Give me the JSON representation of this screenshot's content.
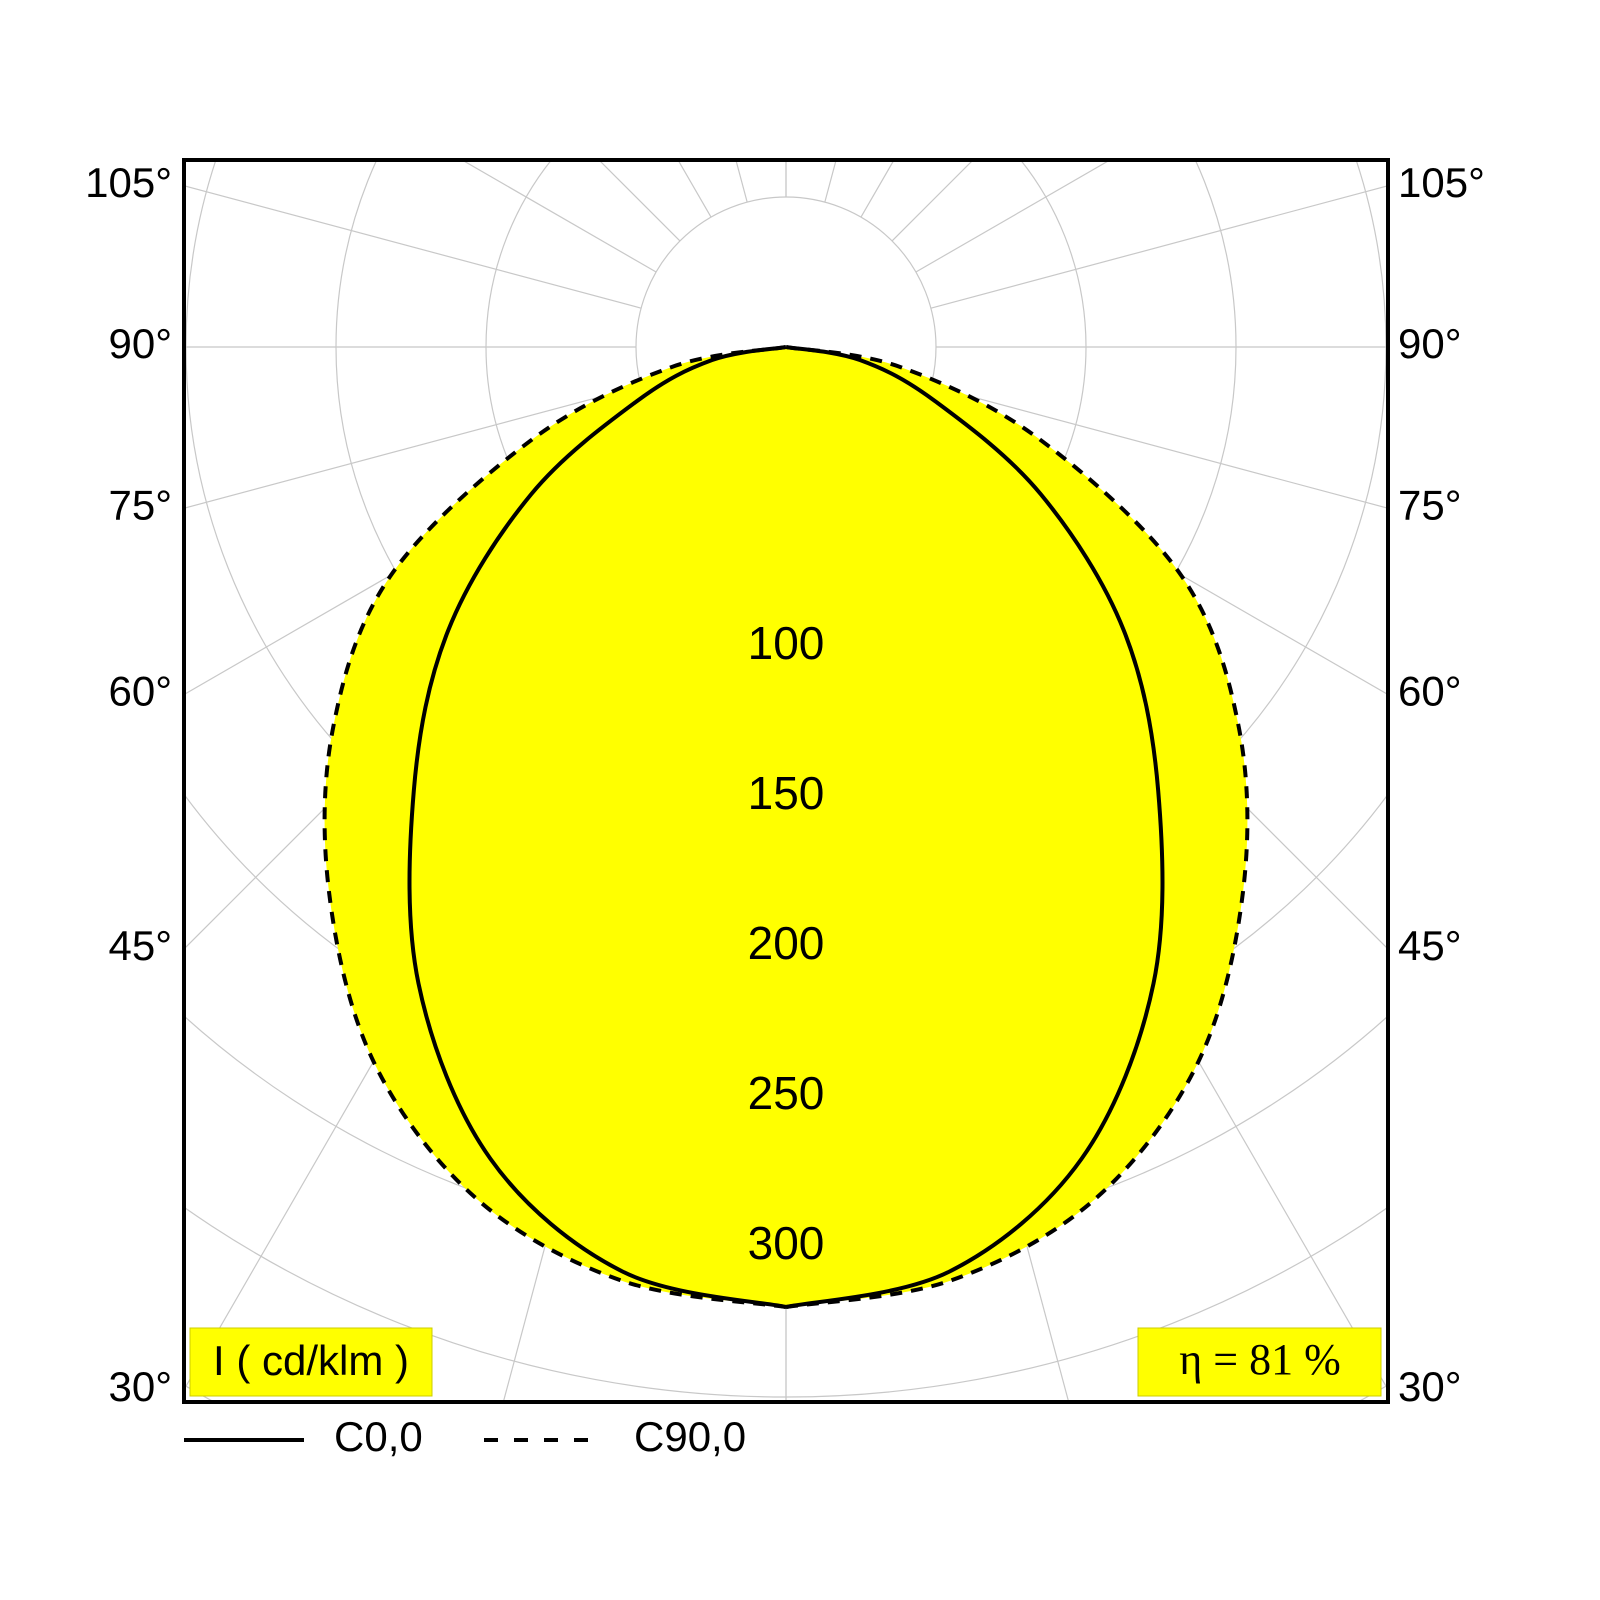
{
  "chart_data": {
    "type": "polar",
    "angles": [
      0,
      10,
      20,
      30,
      40,
      50,
      60,
      70,
      80,
      90
    ],
    "series": [
      {
        "name": "C0,0",
        "color": "#000000",
        "dashed": false,
        "values": [
          320,
          313,
          288,
          245,
          193,
          147,
          98,
          53,
          25,
          0
        ]
      },
      {
        "name": "C90,0",
        "color": "#000000",
        "dashed": true,
        "values": [
          320,
          316,
          302,
          275,
          237,
          197,
          152,
          90,
          39,
          0
        ]
      }
    ],
    "fill_color": "#ffff00",
    "rlim": [
      0,
      400
    ],
    "rticks": [
      100,
      150,
      200,
      250,
      300
    ],
    "rgrid_step": 50,
    "angle_step": 15,
    "angle_ticks": [
      {
        "value": 30,
        "label": "30°"
      },
      {
        "value": 45,
        "label": "45°"
      },
      {
        "value": 60,
        "label": "60°"
      },
      {
        "value": 75,
        "label": "75°"
      },
      {
        "value": 90,
        "label": "90°"
      },
      {
        "value": 105,
        "label": "105°"
      }
    ],
    "unit_label": "I ( cd/klm )",
    "efficiency_label": "η = 81 %"
  }
}
